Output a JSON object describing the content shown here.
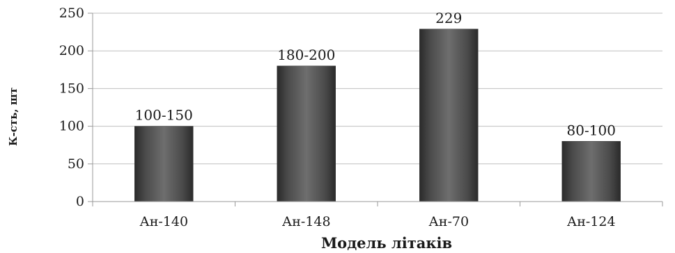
{
  "chart_data": {
    "type": "bar",
    "title": "",
    "xlabel": "Модель літаків",
    "ylabel": "К-сть, шт",
    "ylim": [
      0,
      250
    ],
    "yticks": [
      0,
      50,
      100,
      150,
      200,
      250
    ],
    "grid": true,
    "legend": "none",
    "categories": [
      "Ан-140",
      "Ан-148",
      "Ан-70",
      "Ан-124"
    ],
    "values": [
      100,
      180,
      229,
      80
    ],
    "data_labels": [
      "100-150",
      "180-200",
      "229",
      "80-100"
    ],
    "colors": {
      "bar": "#4a4a4a",
      "grid": "#bfbfbf",
      "axis": "#999999"
    }
  }
}
